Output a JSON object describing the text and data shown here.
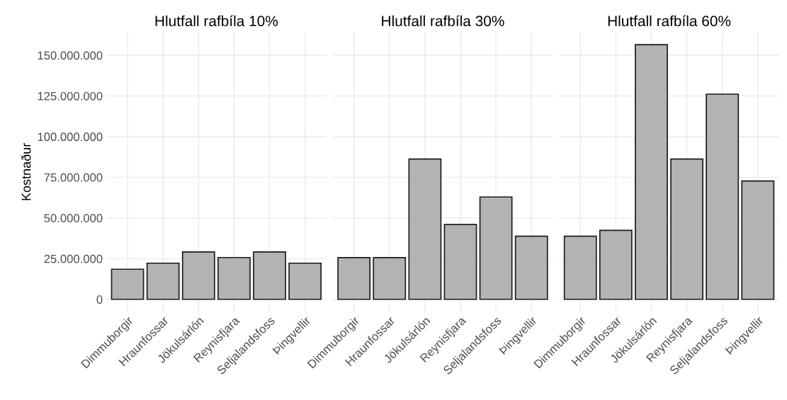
{
  "chart_data": [
    {
      "type": "bar",
      "title": "Hlutfall rafbíla 10%",
      "ylabel": "Kostnaður",
      "categories": [
        "Dimmuborgir",
        "Hraunfossar",
        "Jökulsárlón",
        "Reynisfjara",
        "Seljalandsfoss",
        "Þingvellir"
      ],
      "values": [
        18500000,
        22200000,
        29100000,
        25700000,
        29100000,
        22200000
      ],
      "color": "#b3b3b3",
      "ylim": [
        -7800000,
        164300000
      ],
      "yticks": [
        {
          "value": 0,
          "label": "0"
        },
        {
          "value": 25000000,
          "label": "25.000.000"
        },
        {
          "value": 50000000,
          "label": "50.000.000"
        },
        {
          "value": 75000000,
          "label": "75.000.000"
        },
        {
          "value": 100000000,
          "label": "100.000.000"
        },
        {
          "value": 125000000,
          "label": "125.000.000"
        },
        {
          "value": 150000000,
          "label": "150.000.000"
        }
      ],
      "grid": true
    },
    {
      "type": "bar",
      "title": "Hlutfall rafbíla 30%",
      "categories": [
        "Dimmuborgir",
        "Hraunfossar",
        "Jökulsárlón",
        "Reynisfjara",
        "Seljalandsfoss",
        "Þingvellir"
      ],
      "values": [
        25600000,
        25600000,
        86200000,
        46000000,
        62900000,
        38800000
      ],
      "color": "#b3b3b3",
      "ylim": [
        -7800000,
        164300000
      ],
      "tick_labels": "x",
      "grid": true
    },
    {
      "type": "bar",
      "title": "Hlutfall rafbíla 60%",
      "categories": [
        "Dimmuborgir",
        "Hraunfossar",
        "Jökulsárlón",
        "Reynisfjara",
        "Seljalandsfoss",
        "Þingvellir"
      ],
      "values": [
        38800000,
        42400000,
        156500000,
        86200000,
        126100000,
        72700000
      ],
      "color": "#b3b3b3",
      "ylim": [
        -7800000,
        164300000
      ],
      "tick_labels": "x",
      "grid": true
    }
  ]
}
